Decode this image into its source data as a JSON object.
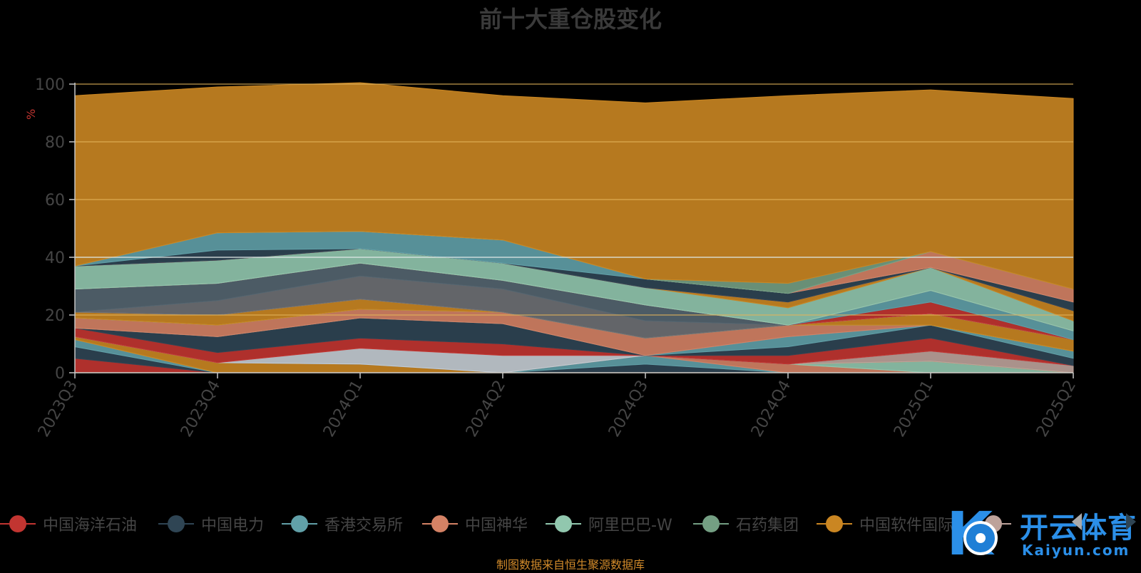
{
  "chart_data": {
    "type": "area",
    "title": "前十大重仓股变化",
    "ylabel": "%",
    "ylim": [
      0,
      100
    ],
    "yticks": [
      0,
      20,
      40,
      60,
      80,
      100
    ],
    "stacked": true,
    "grid": true,
    "legend_position": "bottom",
    "x": [
      "2023Q3",
      "2023Q4",
      "2024Q1",
      "2024Q2",
      "2024Q3",
      "2024Q4",
      "2025Q1",
      "2025Q2"
    ],
    "series": [
      {
        "name": "中国海洋石油",
        "color": "#c23531",
        "values": [
          5.0,
          0,
          0,
          0,
          0,
          0,
          0,
          0
        ]
      },
      {
        "name": "中国电力",
        "color": "#2f4554",
        "values": [
          4.0,
          0,
          0,
          0,
          3.0,
          0,
          0,
          0
        ]
      },
      {
        "name": "香港交易所",
        "color": "#61a0a8",
        "values": [
          2.5,
          0,
          0,
          0,
          3.0,
          0,
          0,
          0
        ]
      },
      {
        "name": "中国神华",
        "color": "#d48265",
        "values": [
          0,
          0,
          0,
          0,
          0,
          3.0,
          0,
          0
        ]
      },
      {
        "name": "阿里巴巴-W",
        "color": "#91c7ae",
        "values": [
          0,
          0,
          0,
          0,
          0,
          0,
          4.0,
          0
        ]
      },
      {
        "name": "石药集团",
        "color": "#749f83",
        "values": [
          0,
          0,
          0,
          0,
          0,
          0,
          0,
          0
        ]
      },
      {
        "name": "中国软件国际",
        "color": "#ca8622",
        "values": [
          1.0,
          3.5,
          3.0,
          0,
          0,
          0,
          0,
          0
        ]
      },
      {
        "name": "",
        "color": "#bda29a",
        "values": [
          0,
          0,
          0,
          0,
          0,
          0,
          3.5,
          2.5
        ]
      },
      {
        "name": "",
        "color": "#6e7074",
        "values": [
          0,
          0,
          0,
          0,
          0,
          0,
          0,
          0
        ]
      },
      {
        "name": "",
        "color": "#546570",
        "values": [
          0,
          0,
          0,
          0,
          0,
          0,
          0,
          0
        ]
      },
      {
        "name": "",
        "color": "#c4ccd3",
        "values": [
          0,
          0,
          5.5,
          6.0,
          0,
          0,
          0,
          0
        ]
      },
      {
        "name": "",
        "color": "#c23531",
        "values": [
          3.0,
          3.5,
          3.5,
          4.0,
          0,
          3.0,
          4.5,
          0
        ]
      },
      {
        "name": "",
        "color": "#2f4554",
        "values": [
          0,
          5.5,
          7.0,
          7.0,
          0,
          3.0,
          4.5,
          2.5
        ]
      },
      {
        "name": "",
        "color": "#61a0a8",
        "values": [
          0,
          0,
          0,
          0,
          0,
          3.5,
          0,
          2.5
        ]
      },
      {
        "name": "",
        "color": "#d48265",
        "values": [
          3.5,
          4.0,
          3.0,
          4.0,
          6.0,
          4.0,
          0,
          0
        ]
      },
      {
        "name": "",
        "color": "#91c7ae",
        "values": [
          0,
          0,
          0,
          0,
          0,
          0,
          0,
          0
        ]
      },
      {
        "name": "",
        "color": "#749f83",
        "values": [
          0,
          0,
          0,
          0,
          0,
          0,
          0,
          0
        ]
      },
      {
        "name": "",
        "color": "#ca8622",
        "values": [
          2.0,
          3.5,
          3.5,
          0,
          0,
          0,
          4.0,
          4.0
        ]
      },
      {
        "name": "",
        "color": "#bda29a",
        "values": [
          0,
          0,
          0,
          0,
          0,
          0,
          0,
          0
        ]
      },
      {
        "name": "",
        "color": "#6e7074",
        "values": [
          0,
          5.0,
          8.0,
          8.0,
          6.0,
          0,
          0,
          0
        ]
      },
      {
        "name": "",
        "color": "#546570",
        "values": [
          8.0,
          6.0,
          4.5,
          3.0,
          5.5,
          0,
          0,
          0
        ]
      },
      {
        "name": "",
        "color": "#c4ccd3",
        "values": [
          0,
          0,
          0,
          0,
          0,
          0,
          0,
          0
        ]
      },
      {
        "name": "",
        "color": "#c23531",
        "values": [
          0,
          0,
          0,
          0,
          0,
          0,
          4.0,
          0
        ]
      },
      {
        "name": "",
        "color": "#2f4554",
        "values": [
          0,
          0,
          0,
          0,
          0,
          0,
          0,
          0
        ]
      },
      {
        "name": "",
        "color": "#61a0a8",
        "values": [
          0,
          0,
          0,
          0,
          0,
          0,
          4.0,
          3.0
        ]
      },
      {
        "name": "",
        "color": "#d48265",
        "values": [
          0,
          0,
          0,
          0,
          0,
          0,
          0,
          0
        ]
      },
      {
        "name": "",
        "color": "#91c7ae",
        "values": [
          8.0,
          8.0,
          5.0,
          6.0,
          6.0,
          6.0,
          8.0,
          3.5
        ]
      },
      {
        "name": "",
        "color": "#749f83",
        "values": [
          0,
          0,
          0,
          0,
          0,
          0,
          0,
          0
        ]
      },
      {
        "name": "",
        "color": "#ca8622",
        "values": [
          0,
          0,
          0,
          0,
          0,
          2.0,
          0,
          3.5
        ]
      },
      {
        "name": "",
        "color": "#bda29a",
        "values": [
          0,
          0,
          0,
          0,
          0,
          0,
          0,
          0
        ]
      },
      {
        "name": "",
        "color": "#6e7074",
        "values": [
          0,
          0,
          0,
          0,
          0,
          0,
          0,
          0
        ]
      },
      {
        "name": "",
        "color": "#546570",
        "values": [
          0,
          0,
          0,
          0,
          0,
          0,
          0,
          0
        ]
      },
      {
        "name": "",
        "color": "#c4ccd3",
        "values": [
          0,
          0,
          0,
          0,
          0,
          0,
          0,
          0
        ]
      },
      {
        "name": "",
        "color": "#c23531",
        "values": [
          0,
          0,
          0,
          0,
          0,
          0,
          0,
          0
        ]
      },
      {
        "name": "",
        "color": "#2f4554",
        "values": [
          0,
          3.5,
          0,
          0,
          3.0,
          3.0,
          0,
          3.0
        ]
      },
      {
        "name": "",
        "color": "#61a0a8",
        "values": [
          0,
          6.0,
          6.0,
          8.0,
          0,
          0,
          0,
          0
        ]
      },
      {
        "name": "",
        "color": "#d48265",
        "values": [
          0,
          0,
          0,
          0,
          0,
          0,
          5.5,
          4.5
        ]
      },
      {
        "name": "",
        "color": "#91c7ae",
        "values": [
          0,
          0,
          0,
          0,
          0,
          0,
          0,
          0
        ]
      },
      {
        "name": "",
        "color": "#749f83",
        "values": [
          0,
          0,
          0,
          0,
          0,
          3.5,
          0,
          0
        ]
      },
      {
        "name": "",
        "color": "#ca8622",
        "values": [
          59.0,
          50.5,
          51.5,
          50.0,
          61.0,
          65.0,
          56.0,
          66.0
        ]
      }
    ]
  },
  "legend": {
    "items": [
      {
        "label": "中国海洋石油",
        "color": "#c23531"
      },
      {
        "label": "中国电力",
        "color": "#2f4554"
      },
      {
        "label": "香港交易所",
        "color": "#61a0a8"
      },
      {
        "label": "中国神华",
        "color": "#d48265"
      },
      {
        "label": "阿里巴巴-W",
        "color": "#91c7ae"
      },
      {
        "label": "石药集团",
        "color": "#749f83"
      },
      {
        "label": "中国软件国际",
        "color": "#ca8622"
      },
      {
        "label": "",
        "color": "#bda29a"
      }
    ]
  },
  "source_note": "制图数据来自恒生聚源数据库",
  "watermark": {
    "text_cn": "开云体育",
    "text_en": "Kaiyun.com"
  },
  "axis_color": "#c7c7c7",
  "text_color": "#454545",
  "gold_fill": "#8c5a17",
  "ylabel_color": "#c23531"
}
